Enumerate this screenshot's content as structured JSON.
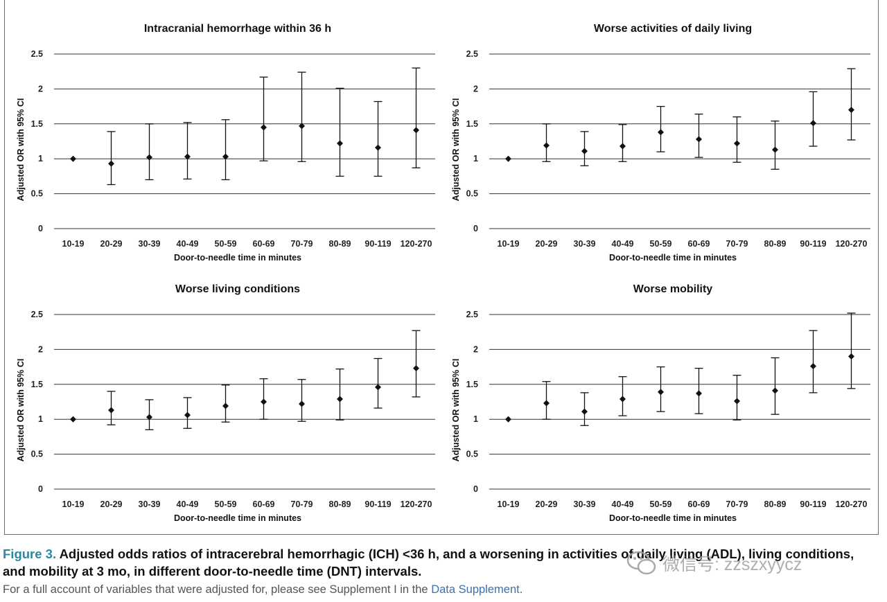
{
  "charts": [
    {
      "type": "scatter",
      "title": "Intracranial hemorrhage within 36 h",
      "xlabel": "Door-to-needle time in minutes",
      "ylabel": "Adjusted OR with 95% CI",
      "categories": [
        "10-19",
        "20-29",
        "30-39",
        "40-49",
        "50-59",
        "60-69",
        "70-79",
        "80-89",
        "90-119",
        "120-270"
      ],
      "values": [
        1.0,
        0.93,
        1.02,
        1.03,
        1.03,
        1.45,
        1.47,
        1.22,
        1.16,
        1.41
      ],
      "lower": [
        1.0,
        0.63,
        0.7,
        0.71,
        0.7,
        0.97,
        0.96,
        0.75,
        0.75,
        0.87
      ],
      "upper": [
        1.0,
        1.39,
        1.5,
        1.52,
        1.56,
        2.17,
        2.24,
        2.01,
        1.82,
        2.3
      ],
      "ylim": [
        0,
        2.5
      ],
      "yticks": [
        "0",
        "0.5",
        "1",
        "1.5",
        "2",
        "2.5"
      ],
      "grid": true
    },
    {
      "type": "scatter",
      "title": "Worse activities of daily living",
      "xlabel": "Door-to-needle time in minutes",
      "ylabel": "Adjusted OR with 95% CI",
      "categories": [
        "10-19",
        "20-29",
        "30-39",
        "40-49",
        "50-59",
        "60-69",
        "70-79",
        "80-89",
        "90-119",
        "120-270"
      ],
      "values": [
        1.0,
        1.19,
        1.11,
        1.18,
        1.38,
        1.28,
        1.22,
        1.13,
        1.51,
        1.7
      ],
      "lower": [
        1.0,
        0.96,
        0.9,
        0.96,
        1.1,
        1.02,
        0.95,
        0.85,
        1.18,
        1.27
      ],
      "upper": [
        1.0,
        1.5,
        1.39,
        1.49,
        1.75,
        1.64,
        1.6,
        1.54,
        1.96,
        2.29
      ],
      "ylim": [
        0,
        2.5
      ],
      "yticks": [
        "0",
        "0.5",
        "1",
        "1.5",
        "2",
        "2.5"
      ],
      "grid": true
    },
    {
      "type": "scatter",
      "title": "Worse living conditions",
      "xlabel": "Door-to-needle time in minutes",
      "ylabel": "Adjusted OR with 95% CI",
      "categories": [
        "10-19",
        "20-29",
        "30-39",
        "40-49",
        "50-59",
        "60-69",
        "70-79",
        "80-89",
        "90-119",
        "120-270"
      ],
      "values": [
        1.0,
        1.13,
        1.03,
        1.06,
        1.19,
        1.25,
        1.22,
        1.29,
        1.46,
        1.73
      ],
      "lower": [
        1.0,
        0.92,
        0.85,
        0.87,
        0.96,
        1.0,
        0.97,
        0.99,
        1.16,
        1.32
      ],
      "upper": [
        1.0,
        1.4,
        1.28,
        1.31,
        1.49,
        1.58,
        1.57,
        1.72,
        1.87,
        2.27
      ],
      "ylim": [
        0,
        2.5
      ],
      "yticks": [
        "0",
        "0.5",
        "1",
        "1.5",
        "2",
        "2.5"
      ],
      "grid": true
    },
    {
      "type": "scatter",
      "title": "Worse mobility",
      "xlabel": "Door-to-needle time in minutes",
      "ylabel": "Adjusted OR with 95% CI",
      "categories": [
        "10-19",
        "20-29",
        "30-39",
        "40-49",
        "50-59",
        "60-69",
        "70-79",
        "80-89",
        "90-119",
        "120-270"
      ],
      "values": [
        1.0,
        1.23,
        1.11,
        1.29,
        1.39,
        1.37,
        1.26,
        1.41,
        1.76,
        1.9
      ],
      "lower": [
        1.0,
        1.0,
        0.91,
        1.05,
        1.11,
        1.08,
        0.99,
        1.07,
        1.38,
        1.44
      ],
      "upper": [
        1.0,
        1.54,
        1.38,
        1.61,
        1.75,
        1.73,
        1.63,
        1.88,
        2.27,
        2.52
      ],
      "ylim": [
        0,
        2.5
      ],
      "yticks": [
        "0",
        "0.5",
        "1",
        "1.5",
        "2",
        "2.5"
      ],
      "grid": true
    }
  ],
  "caption": {
    "label": "Figure 3.",
    "text": " Adjusted odds ratios of intracerebral hemorrhagic (ICH) <36 h, and a worsening in activities of daily living (ADL), living conditions, and mobility at 3 mo, in different door-to-needle time (DNT) intervals.",
    "note_prefix": "For a full account of variables that were adjusted for, please see Supplement I in the ",
    "note_link": "Data Supplement",
    "note_suffix": "."
  },
  "watermark": {
    "text": "微信号: zzszxyycz",
    "icon": "wechat-icon"
  },
  "colors": {
    "marker": "#111111",
    "grid": "#333333",
    "caption_label": "#2a8aa0",
    "link": "#3a6fb0"
  }
}
